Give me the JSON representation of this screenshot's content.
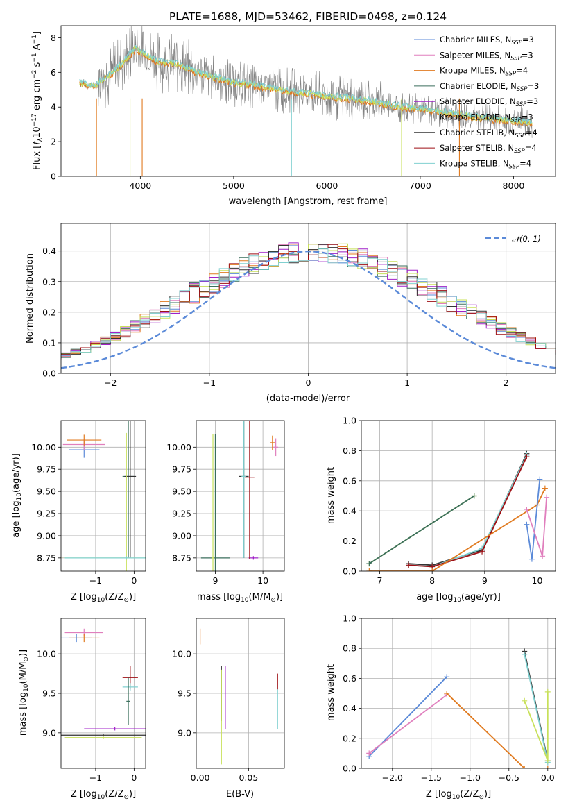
{
  "figure_title": "PLATE=1688, MJD=53462, FIBERID=0498, z=0.124",
  "colors": {
    "chabrier_miles": "#5b8ad8",
    "salpeter_miles": "#e07fbd",
    "kroupa_miles": "#e07a1f",
    "chabrier_elodie": "#3a6e5c",
    "salpeter_elodie": "#a020c8",
    "kroupa_elodie": "#c8e05a",
    "chabrier_stelib": "#333333",
    "salpeter_stelib": "#9e0f14",
    "kroupa_stelib": "#80d0d0",
    "data": "#808080",
    "normal": "#5b8ad8"
  },
  "legend_items": [
    {
      "key": "chabrier_miles",
      "prefix": "Chabrier MILES, N",
      "sub": "SSP",
      "suffix": "=3"
    },
    {
      "key": "salpeter_miles",
      "prefix": "Salpeter MILES, N",
      "sub": "SSP",
      "suffix": "=3"
    },
    {
      "key": "kroupa_miles",
      "prefix": "Kroupa MILES, N",
      "sub": "SSP",
      "suffix": "=4"
    },
    {
      "key": "chabrier_elodie",
      "prefix": "Chabrier ELODIE, N",
      "sub": "SSP",
      "suffix": "=3"
    },
    {
      "key": "salpeter_elodie",
      "prefix": "Salpeter ELODIE, N",
      "sub": "SSP",
      "suffix": "=3"
    },
    {
      "key": "kroupa_elodie",
      "prefix": "Kroupa ELODIE, N",
      "sub": "SSP",
      "suffix": "=3"
    },
    {
      "key": "chabrier_stelib",
      "prefix": "Chabrier STELIB, N",
      "sub": "SSP",
      "suffix": "=4"
    },
    {
      "key": "salpeter_stelib",
      "prefix": "Salpeter STELIB, N",
      "sub": "SSP",
      "suffix": "=4"
    },
    {
      "key": "kroupa_stelib",
      "prefix": "Kroupa STELIB, N",
      "sub": "SSP",
      "suffix": "=4"
    }
  ],
  "hist_legend": "𝒩(0, 1)",
  "chart_data": [
    {
      "id": "spectrum",
      "type": "line",
      "xlabel": "wavelength [Angstrom, rest frame]",
      "ylabel_parts": [
        "Flux [",
        "f",
        "λ",
        "10",
        "−17",
        " erg cm",
        "−2",
        " s",
        "−1",
        " A",
        "−1",
        "]"
      ],
      "xlim": [
        3150,
        8450
      ],
      "ylim": [
        0,
        8.7
      ],
      "xticks": [
        4000,
        5000,
        6000,
        7000,
        8000
      ],
      "yticks": [
        0,
        2,
        4,
        6,
        8
      ],
      "model_points": [
        [
          3350,
          5.4
        ],
        [
          3500,
          5.2
        ],
        [
          3600,
          5.6
        ],
        [
          3750,
          6.2
        ],
        [
          3850,
          6.8
        ],
        [
          3950,
          7.4
        ],
        [
          4050,
          7.0
        ],
        [
          4200,
          6.6
        ],
        [
          4400,
          6.5
        ],
        [
          4600,
          6.0
        ],
        [
          4800,
          5.7
        ],
        [
          5000,
          5.4
        ],
        [
          5200,
          5.3
        ],
        [
          5400,
          5.1
        ],
        [
          5600,
          4.9
        ],
        [
          5800,
          4.8
        ],
        [
          6000,
          4.6
        ],
        [
          6200,
          4.5
        ],
        [
          6400,
          4.4
        ],
        [
          6600,
          4.2
        ],
        [
          6800,
          4.0
        ],
        [
          7000,
          3.9
        ],
        [
          7200,
          3.7
        ],
        [
          7400,
          3.6
        ],
        [
          7600,
          3.4
        ],
        [
          7800,
          3.3
        ],
        [
          8000,
          3.2
        ],
        [
          8200,
          3.1
        ]
      ],
      "absorption_dips": [
        {
          "x": 3530,
          "key": "kroupa_miles"
        },
        {
          "x": 3890,
          "key": "kroupa_elodie"
        },
        {
          "x": 4020,
          "key": "kroupa_miles"
        },
        {
          "x": 5620,
          "key": "kroupa_stelib"
        },
        {
          "x": 6800,
          "key": "kroupa_elodie"
        },
        {
          "x": 7420,
          "key": "kroupa_miles"
        }
      ]
    },
    {
      "id": "residual_hist",
      "type": "histogram",
      "xlabel": "(data-model)/error",
      "ylabel": "Normed distribution",
      "xlim": [
        -2.5,
        2.5
      ],
      "ylim": [
        0,
        0.49
      ],
      "xticks": [
        -2,
        -1,
        0,
        1,
        2
      ],
      "yticks": [
        0,
        0.1,
        0.2,
        0.3,
        0.4
      ],
      "bin_width": 0.1,
      "envelope": [
        0.018,
        0.02,
        0.025,
        0.03,
        0.038,
        0.045,
        0.052,
        0.06,
        0.07,
        0.08,
        0.092,
        0.105,
        0.12,
        0.135,
        0.152,
        0.17,
        0.19,
        0.208,
        0.226,
        0.245,
        0.262,
        0.28,
        0.298,
        0.315,
        0.33,
        0.345,
        0.358,
        0.37,
        0.38,
        0.388,
        0.394,
        0.398,
        0.4,
        0.399,
        0.396,
        0.39,
        0.383,
        0.373,
        0.362,
        0.349,
        0.335,
        0.32,
        0.304,
        0.288,
        0.27,
        0.252,
        0.234,
        0.216,
        0.198,
        0.18,
        0.163,
        0.147,
        0.132,
        0.118,
        0.105,
        0.093,
        0.082,
        0.072,
        0.063,
        0.055,
        0.048,
        0.042,
        0.037,
        0.033,
        0.03,
        0.027,
        0.025,
        0.023,
        0.022,
        0.021,
        0.02
      ],
      "series_keys": [
        "chabrier_miles",
        "salpeter_miles",
        "kroupa_miles",
        "chabrier_elodie",
        "salpeter_elodie",
        "kroupa_elodie",
        "chabrier_stelib",
        "salpeter_stelib",
        "kroupa_stelib"
      ]
    },
    {
      "id": "age_vs_z",
      "type": "scatter",
      "xlabel_parts": [
        "Z [log",
        "10",
        "(Z/Z",
        "⊙",
        ")]"
      ],
      "ylabel_parts": [
        "age  [log",
        "10",
        "(age/yr)]"
      ],
      "xlim": [
        -1.9,
        0.3
      ],
      "ylim": [
        8.6,
        10.3
      ],
      "xticks": [
        -1,
        0
      ],
      "yticks": [
        8.75,
        9.0,
        9.25,
        9.5,
        9.75,
        10.0
      ],
      "points": [
        {
          "key": "chabrier_miles",
          "x": -1.3,
          "y": 9.97,
          "xerr": 0.4,
          "yerr": 0.09
        },
        {
          "key": "salpeter_miles",
          "x": -1.3,
          "y": 10.03,
          "xerr": 0.55,
          "yerr": 0.06
        },
        {
          "key": "kroupa_miles",
          "x": -1.3,
          "y": 10.08,
          "xerr": 0.45,
          "yerr": 0.06
        },
        {
          "key": "chabrier_elodie",
          "x": -0.15,
          "y": 9.67,
          "xerr": 0.15,
          "yerr": 0.92
        },
        {
          "key": "chabrier_stelib",
          "x": -0.1,
          "y": 9.67,
          "xerr": 0.15,
          "yerr": 0.92
        },
        {
          "key": "kroupa_elodie",
          "x": -0.2,
          "y": 8.76,
          "xerr": 1.7,
          "yerr": 1.4
        },
        {
          "key": "kroupa_stelib",
          "x": -0.2,
          "y": 8.75,
          "xerr": 1.6,
          "yerr": 0.02
        }
      ]
    },
    {
      "id": "age_vs_mass",
      "type": "scatter",
      "xlabel_parts": [
        "mass [log",
        "10",
        "(M/M",
        "⊙",
        ")]"
      ],
      "ylabel": "",
      "xlim": [
        8.6,
        10.45
      ],
      "ylim": [
        8.6,
        10.3
      ],
      "xticks": [
        9,
        10
      ],
      "yticks": [
        8.75,
        9.0,
        9.25,
        9.5,
        9.75,
        10.0
      ],
      "points": [
        {
          "key": "kroupa_miles",
          "x": 10.2,
          "y": 10.05,
          "xerr": 0.05,
          "yerr": 0.08
        },
        {
          "key": "salpeter_miles",
          "x": 10.27,
          "y": 10.0,
          "xerr": 0.05,
          "yerr": 0.1
        },
        {
          "key": "chabrier_elodie",
          "x": 9.0,
          "y": 8.75,
          "xerr": 0.3,
          "yerr": 1.4
        },
        {
          "key": "kroupa_elodie",
          "x": 8.95,
          "y": 8.75,
          "xerr": 0.03,
          "yerr": 1.4
        },
        {
          "key": "salpeter_elodie",
          "x": 9.8,
          "y": 8.75,
          "xerr": 0.1,
          "yerr": 0.02
        },
        {
          "key": "chabrier_stelib",
          "x": 9.6,
          "y": 9.67,
          "xerr": 0.1,
          "yerr": 0.92
        },
        {
          "key": "salpeter_stelib",
          "x": 9.72,
          "y": 9.66,
          "xerr": 0.1,
          "yerr": 0.92
        },
        {
          "key": "kroupa_stelib",
          "x": 9.6,
          "y": 9.67,
          "xerr": 0.05,
          "yerr": 0.92
        }
      ]
    },
    {
      "id": "weight_vs_age",
      "type": "line",
      "xlabel_parts": [
        "age  [log",
        "10",
        "(age/yr)]"
      ],
      "ylabel": "mass weight",
      "xlim": [
        6.65,
        10.35
      ],
      "ylim": [
        0,
        1.0
      ],
      "xticks": [
        7,
        8,
        9,
        10
      ],
      "yticks": [
        0,
        0.2,
        0.4,
        0.6,
        0.8,
        1.0
      ],
      "series": [
        {
          "key": "kroupa_elodie",
          "x": [
            6.8,
            8.8
          ],
          "y": [
            0.05,
            0.5
          ]
        },
        {
          "key": "chabrier_elodie",
          "x": [
            6.8,
            8.8
          ],
          "y": [
            0.05,
            0.5
          ]
        },
        {
          "key": "chabrier_stelib",
          "x": [
            7.55,
            8.0,
            8.95,
            9.8
          ],
          "y": [
            0.05,
            0.04,
            0.14,
            0.78
          ]
        },
        {
          "key": "kroupa_stelib",
          "x": [
            7.55,
            8.0,
            8.95,
            9.8
          ],
          "y": [
            0.04,
            0.03,
            0.15,
            0.77
          ]
        },
        {
          "key": "salpeter_stelib",
          "x": [
            7.55,
            8.0,
            8.95,
            9.8
          ],
          "y": [
            0.04,
            0.03,
            0.13,
            0.76
          ]
        },
        {
          "key": "kroupa_miles",
          "x": [
            6.8,
            8.0,
            10.0,
            10.15
          ],
          "y": [
            0.0,
            0.0,
            0.44,
            0.55
          ]
        },
        {
          "key": "chabrier_miles",
          "x": [
            9.8,
            9.9,
            10.05
          ],
          "y": [
            0.31,
            0.08,
            0.61
          ]
        },
        {
          "key": "salpeter_miles",
          "x": [
            9.8,
            10.1,
            10.18
          ],
          "y": [
            0.41,
            0.1,
            0.49
          ]
        }
      ]
    },
    {
      "id": "mass_vs_z",
      "type": "scatter",
      "xlabel_parts": [
        "Z [log",
        "10",
        "(Z/Z",
        "⊙",
        ")]"
      ],
      "ylabel_parts": [
        "mass [log",
        "10",
        "(M/M",
        "⊙",
        ")]"
      ],
      "xlim": [
        -1.9,
        0.3
      ],
      "ylim": [
        8.55,
        10.45
      ],
      "xticks": [
        -1,
        0
      ],
      "yticks": [
        9.0,
        9.5,
        10.0
      ],
      "points": [
        {
          "key": "salpeter_miles",
          "x": -1.3,
          "y": 10.27,
          "xerr": 0.5,
          "yerr": 0.05
        },
        {
          "key": "chabrier_miles",
          "x": -1.5,
          "y": 10.2,
          "xerr": 0.4,
          "yerr": 0.05
        },
        {
          "key": "kroupa_miles",
          "x": -1.3,
          "y": 10.2,
          "xerr": 0.4,
          "yerr": 0.05
        },
        {
          "key": "salpeter_stelib",
          "x": -0.1,
          "y": 9.7,
          "xerr": 0.2,
          "yerr": 0.15
        },
        {
          "key": "kroupa_stelib",
          "x": -0.1,
          "y": 9.58,
          "xerr": 0.2,
          "yerr": 0.05
        },
        {
          "key": "chabrier_elodie",
          "x": -0.15,
          "y": 9.4,
          "xerr": 0.05,
          "yerr": 0.3
        },
        {
          "key": "salpeter_elodie",
          "x": -0.5,
          "y": 9.05,
          "xerr": 0.8,
          "yerr": 0.02
        },
        {
          "key": "chabrier_stelib",
          "x": -0.8,
          "y": 8.97,
          "xerr": 1.1,
          "yerr": 0.02
        },
        {
          "key": "kroupa_elodie",
          "x": -0.8,
          "y": 8.94,
          "xerr": 1.0,
          "yerr": 0.02
        }
      ]
    },
    {
      "id": "mass_vs_ebv",
      "type": "scatter",
      "xlabel": "E(B-V)",
      "ylabel": "",
      "xlim": [
        -0.004,
        0.087
      ],
      "ylim": [
        8.55,
        10.45
      ],
      "xticks": [
        0.0,
        0.05
      ],
      "yticks": [
        9.0,
        9.5,
        10.0
      ],
      "points": [
        {
          "key": "kroupa_miles",
          "x": 0.0,
          "y": 10.22,
          "xerr": 0,
          "yerr": 0.1
        },
        {
          "key": "chabrier_stelib",
          "x": 0.022,
          "y": 9.5,
          "xerr": 0,
          "yerr": 0.35
        },
        {
          "key": "kroupa_elodie",
          "x": 0.022,
          "y": 9.2,
          "xerr": 0,
          "yerr": 0.6
        },
        {
          "key": "salpeter_elodie",
          "x": 0.026,
          "y": 9.45,
          "xerr": 0,
          "yerr": 0.4
        },
        {
          "key": "salpeter_stelib",
          "x": 0.08,
          "y": 9.65,
          "xerr": 0,
          "yerr": 0.1
        },
        {
          "key": "kroupa_stelib",
          "x": 0.08,
          "y": 9.3,
          "xerr": 0,
          "yerr": 0.25
        }
      ]
    },
    {
      "id": "weight_vs_z",
      "type": "line",
      "xlabel_parts": [
        "Z [log",
        "10",
        "(Z/Z",
        "⊙",
        ")]"
      ],
      "ylabel": "mass weight",
      "xlim": [
        -2.4,
        0.1
      ],
      "ylim": [
        0,
        1.0
      ],
      "xticks": [
        -2.0,
        -1.5,
        -1.0,
        -0.5,
        0.0
      ],
      "yticks": [
        0,
        0.2,
        0.4,
        0.6,
        0.8,
        1.0
      ],
      "series": [
        {
          "key": "chabrier_miles",
          "x": [
            -2.3,
            -1.3
          ],
          "y": [
            0.08,
            0.61
          ]
        },
        {
          "key": "salpeter_miles",
          "x": [
            -2.3,
            -1.3
          ],
          "y": [
            0.1,
            0.49
          ]
        },
        {
          "key": "kroupa_miles",
          "x": [
            -1.3,
            -0.3,
            0.0
          ],
          "y": [
            0.5,
            0.0,
            0.0
          ]
        },
        {
          "key": "chabrier_stelib",
          "x": [
            -0.3,
            0.0
          ],
          "y": [
            0.78,
            0.05
          ]
        },
        {
          "key": "kroupa_stelib",
          "x": [
            -0.3,
            0.0
          ],
          "y": [
            0.76,
            0.04
          ]
        },
        {
          "key": "kroupa_elodie",
          "x": [
            -0.3,
            0.0,
            0.0
          ],
          "y": [
            0.45,
            0.05,
            0.51
          ]
        }
      ]
    }
  ]
}
